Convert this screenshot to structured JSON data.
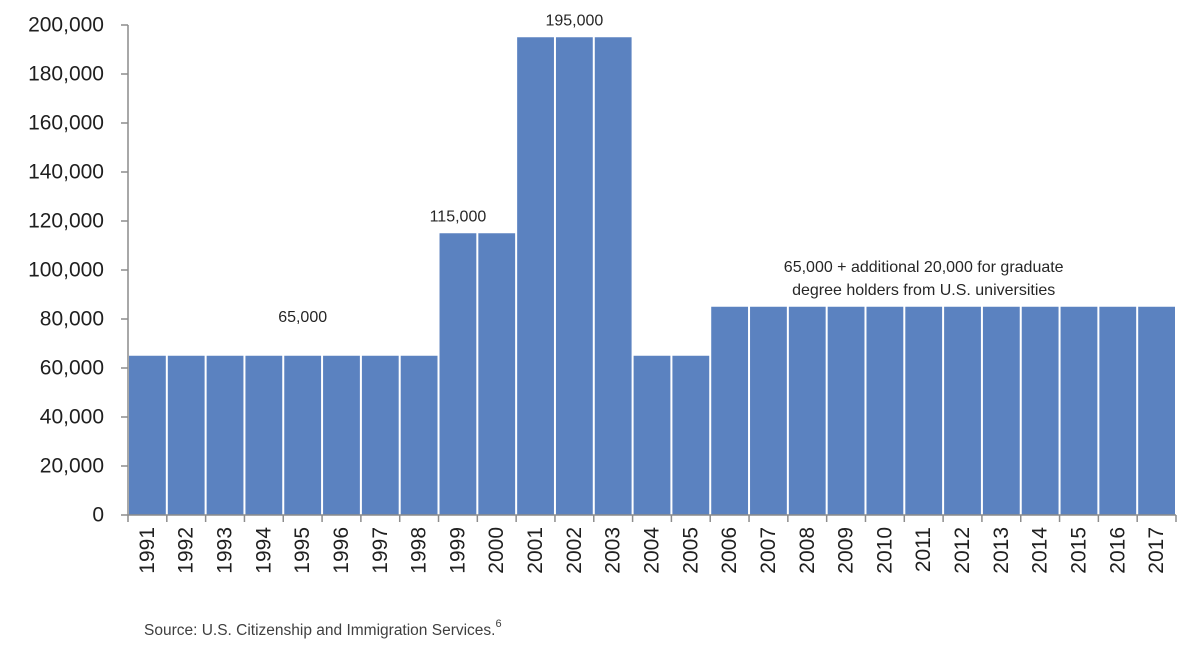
{
  "chart_data": {
    "type": "bar",
    "categories": [
      "1991",
      "1992",
      "1993",
      "1994",
      "1995",
      "1996",
      "1997",
      "1998",
      "1999",
      "2000",
      "2001",
      "2002",
      "2003",
      "2004",
      "2005",
      "2006",
      "2007",
      "2008",
      "2009",
      "2010",
      "2011",
      "2012",
      "2013",
      "2014",
      "2015",
      "2016",
      "2017"
    ],
    "values": [
      65000,
      65000,
      65000,
      65000,
      65000,
      65000,
      65000,
      65000,
      115000,
      115000,
      195000,
      195000,
      195000,
      65000,
      65000,
      85000,
      85000,
      85000,
      85000,
      85000,
      85000,
      85000,
      85000,
      85000,
      85000,
      85000,
      85000
    ],
    "ylim": [
      0,
      200000
    ],
    "yticks": [
      0,
      20000,
      40000,
      60000,
      80000,
      100000,
      120000,
      140000,
      160000,
      180000,
      200000
    ],
    "ytick_labels": [
      "0",
      "20,000",
      "40,000",
      "60,000",
      "80,000",
      "100,000",
      "120,000",
      "140,000",
      "160,000",
      "180,000",
      "200,000"
    ],
    "annotations": [
      {
        "text": "65,000",
        "category": "1995",
        "value": 65000
      },
      {
        "text": "115,000",
        "category": "1999",
        "value": 115000
      },
      {
        "text": "195,000",
        "category": "2002",
        "value": 195000
      },
      {
        "lines": [
          "65,000 + additional 20,000 for graduate",
          "degree holders from U.S. universities"
        ],
        "category": "2011",
        "value": 85000
      }
    ],
    "bar_color": "#5b82c0",
    "grid": false,
    "legend": "none",
    "title": "",
    "xlabel": "",
    "ylabel": ""
  },
  "source": {
    "text": "Source: U.S. Citizenship and Immigration Services.",
    "footnote": "6"
  }
}
